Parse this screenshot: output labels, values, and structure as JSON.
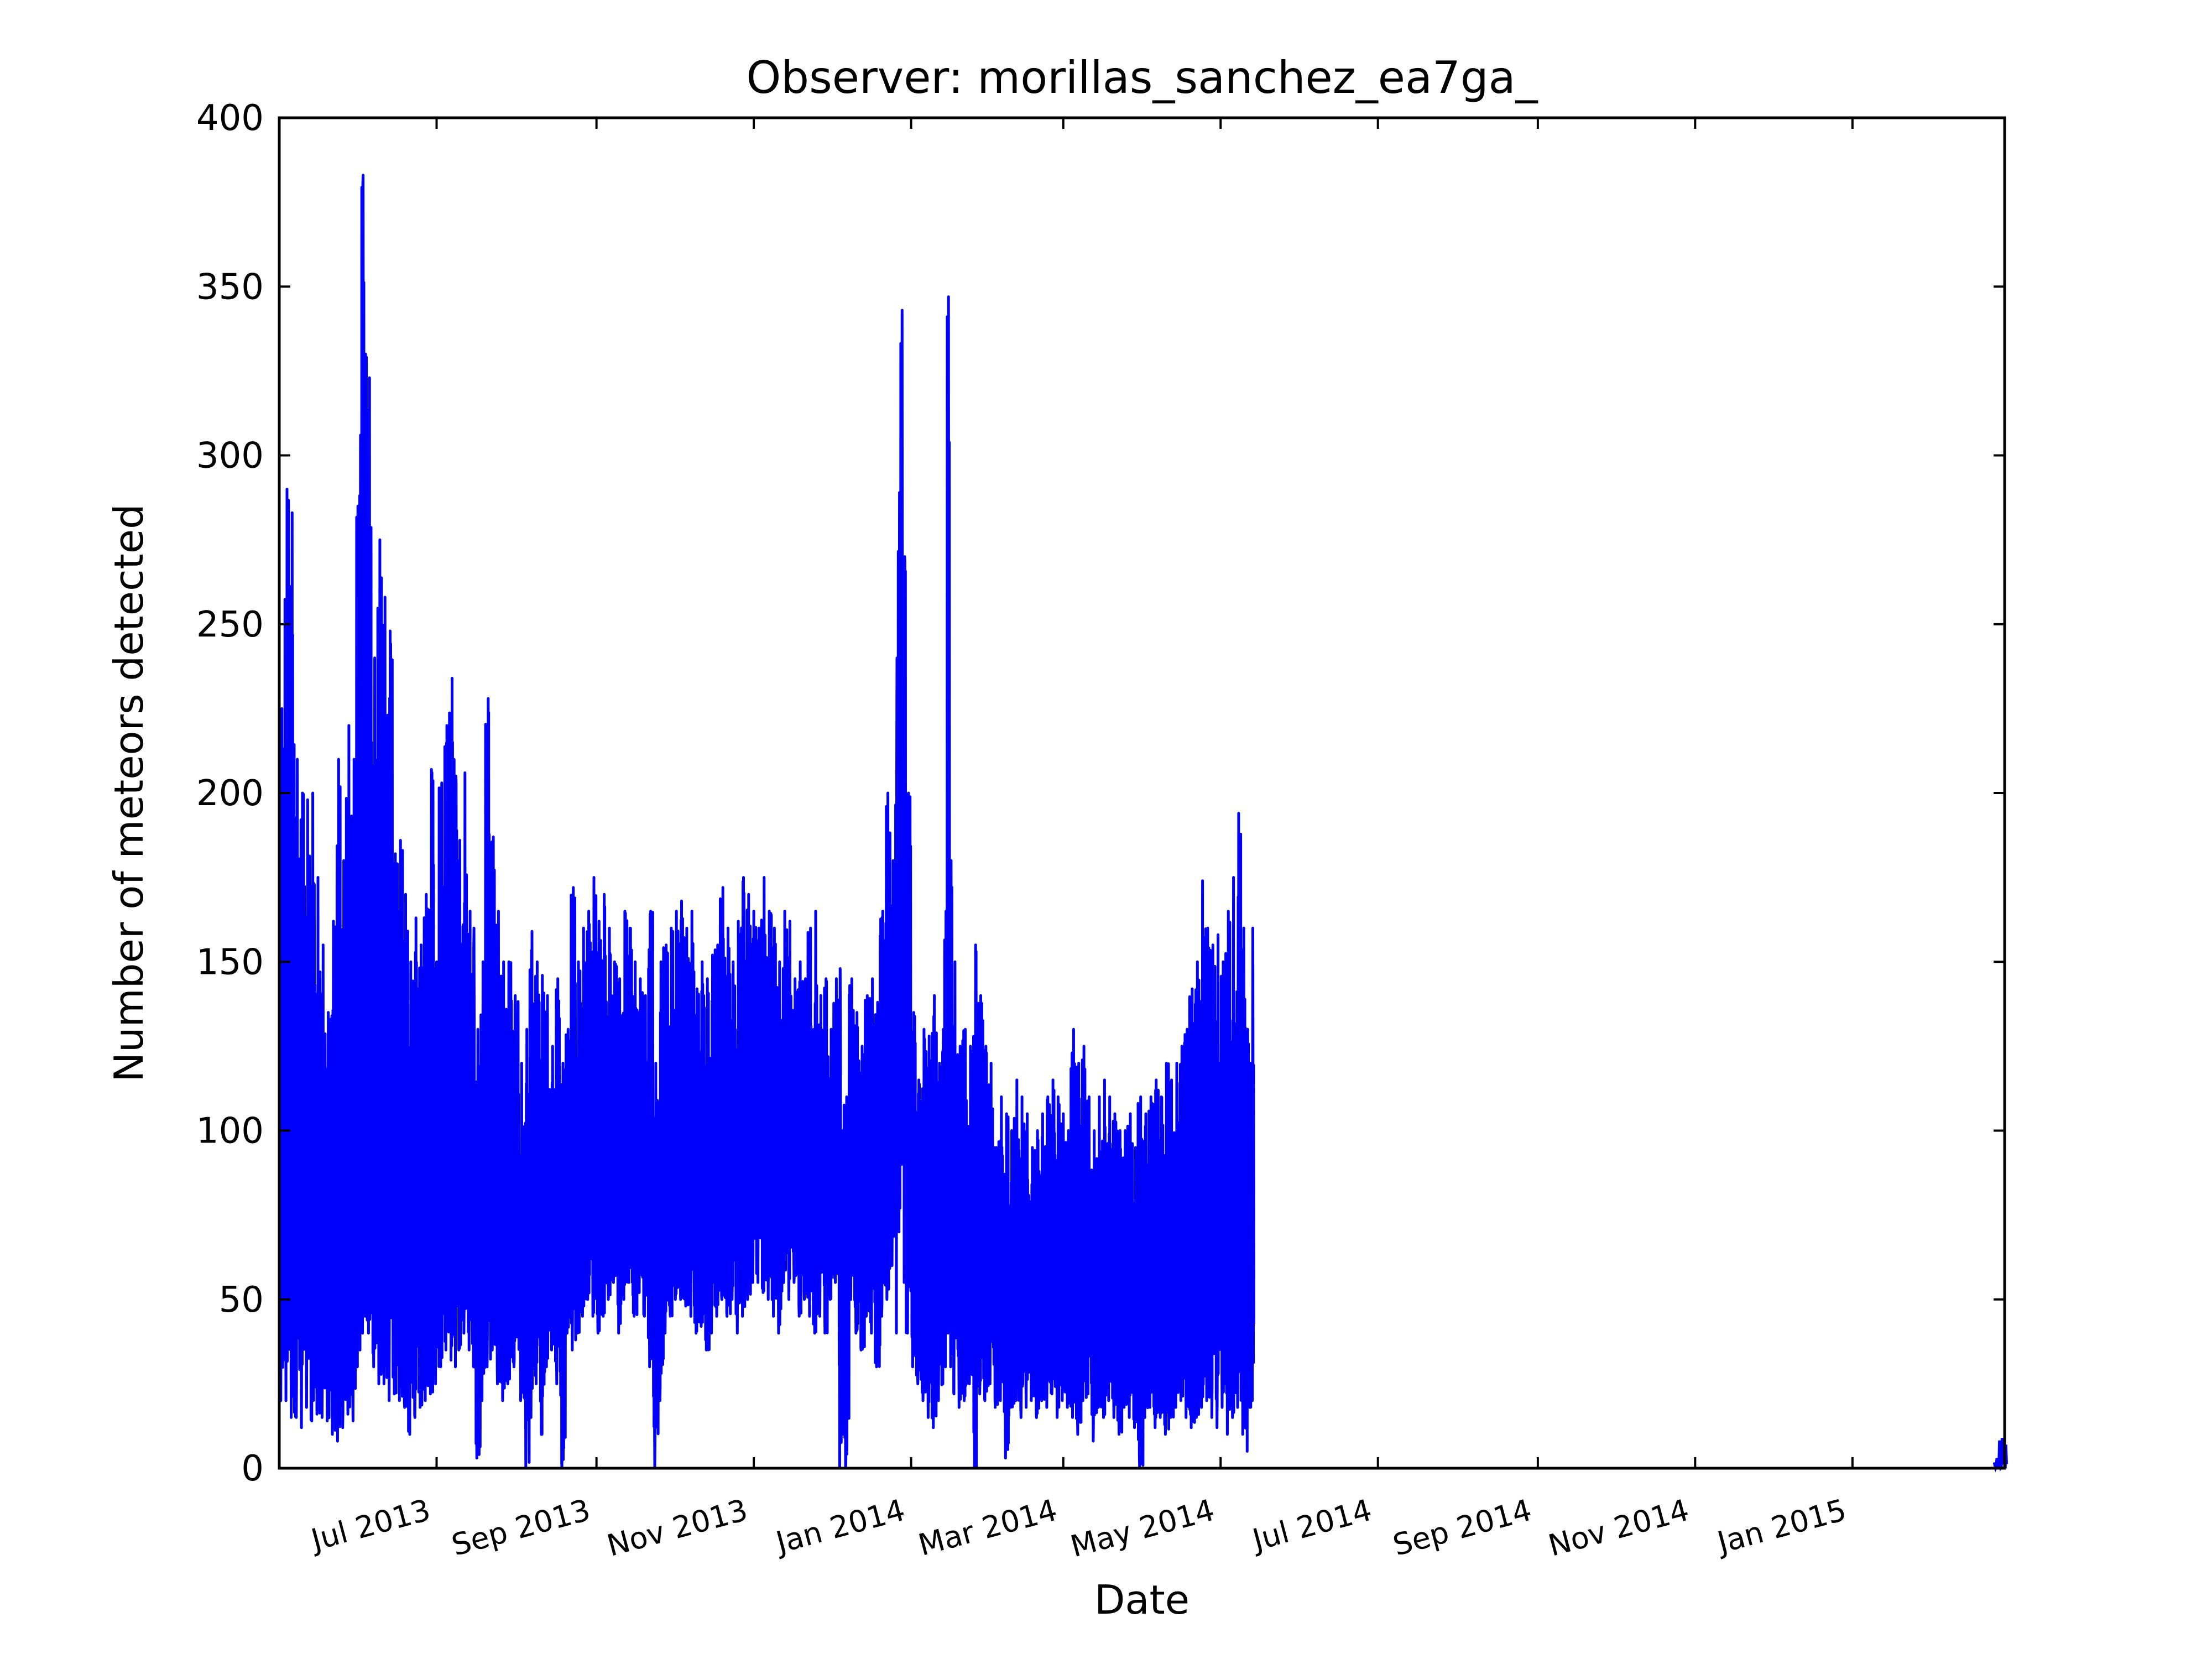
{
  "chart_data": {
    "type": "line",
    "title": "Observer: morillas_sanchez_ea7ga_",
    "xlabel": "Date",
    "ylabel": "Number of meteors detected",
    "xlim": [
      "2013-05-01",
      "2015-03-01"
    ],
    "ylim": [
      0,
      400
    ],
    "yticks": [
      0,
      50,
      100,
      150,
      200,
      250,
      300,
      350,
      400
    ],
    "xticks": [
      {
        "date": "2013-07-01",
        "label": "Jul 2013"
      },
      {
        "date": "2013-09-01",
        "label": "Sep 2013"
      },
      {
        "date": "2013-11-01",
        "label": "Nov 2013"
      },
      {
        "date": "2014-01-01",
        "label": "Jan 2014"
      },
      {
        "date": "2014-03-01",
        "label": "Mar 2014"
      },
      {
        "date": "2014-05-01",
        "label": "May 2014"
      },
      {
        "date": "2014-07-01",
        "label": "Jul 2014"
      },
      {
        "date": "2014-09-01",
        "label": "Sep 2014"
      },
      {
        "date": "2014-11-01",
        "label": "Nov 2014"
      },
      {
        "date": "2015-01-01",
        "label": "Jan 2015"
      }
    ],
    "grid": false,
    "legend": "none",
    "series": [
      {
        "color": "#0000ff",
        "daily_ranges": [
          [
            "2013-05-01",
            20,
            225
          ],
          [
            "2013-05-03",
            20,
            290
          ],
          [
            "2013-05-05",
            15,
            283
          ],
          [
            "2013-05-07",
            15,
            210
          ],
          [
            "2013-05-09",
            12,
            200
          ],
          [
            "2013-05-11",
            18,
            198
          ],
          [
            "2013-05-13",
            14,
            200
          ],
          [
            "2013-05-15",
            16,
            175
          ],
          [
            "2013-05-17",
            15,
            155
          ],
          [
            "2013-05-19",
            14,
            135
          ],
          [
            "2013-05-21",
            10,
            162
          ],
          [
            "2013-05-23",
            8,
            210
          ],
          [
            "2013-05-25",
            12,
            180
          ],
          [
            "2013-05-27",
            16,
            220
          ],
          [
            "2013-05-29",
            14,
            210
          ],
          [
            "2013-05-31",
            30,
            285
          ],
          [
            "2013-06-01",
            35,
            306
          ],
          [
            "2013-06-02",
            40,
            383
          ],
          [
            "2013-06-03",
            45,
            330
          ],
          [
            "2013-06-04",
            40,
            323
          ],
          [
            "2013-06-06",
            30,
            240
          ],
          [
            "2013-06-08",
            25,
            275
          ],
          [
            "2013-06-10",
            25,
            258
          ],
          [
            "2013-06-12",
            20,
            248
          ],
          [
            "2013-06-14",
            22,
            182
          ],
          [
            "2013-06-16",
            20,
            186
          ],
          [
            "2013-06-18",
            18,
            170
          ],
          [
            "2013-06-20",
            10,
            150
          ],
          [
            "2013-06-22",
            15,
            163
          ],
          [
            "2013-06-24",
            18,
            155
          ],
          [
            "2013-06-26",
            20,
            170
          ],
          [
            "2013-06-28",
            22,
            207
          ],
          [
            "2013-06-30",
            25,
            150
          ],
          [
            "2013-07-02",
            30,
            203
          ],
          [
            "2013-07-04",
            35,
            220
          ],
          [
            "2013-07-06",
            32,
            234
          ],
          [
            "2013-07-08",
            30,
            205
          ],
          [
            "2013-07-09",
            35,
            186
          ],
          [
            "2013-07-11",
            40,
            206
          ],
          [
            "2013-07-13",
            35,
            165
          ],
          [
            "2013-07-15",
            30,
            160
          ],
          [
            "2013-07-16",
            3,
            130
          ],
          [
            "2013-07-18",
            20,
            150
          ],
          [
            "2013-07-20",
            30,
            228
          ],
          [
            "2013-07-22",
            35,
            187
          ],
          [
            "2013-07-24",
            25,
            165
          ],
          [
            "2013-07-26",
            20,
            150
          ],
          [
            "2013-07-28",
            25,
            150
          ],
          [
            "2013-07-30",
            30,
            140
          ],
          [
            "2013-08-02",
            20,
            120
          ],
          [
            "2013-08-04",
            0,
            130
          ],
          [
            "2013-08-06",
            15,
            159
          ],
          [
            "2013-08-08",
            25,
            150
          ],
          [
            "2013-08-10",
            10,
            146
          ],
          [
            "2013-08-12",
            30,
            140
          ],
          [
            "2013-08-14",
            35,
            125
          ],
          [
            "2013-08-16",
            25,
            145
          ],
          [
            "2013-08-18",
            0,
            120
          ],
          [
            "2013-08-20",
            40,
            130
          ],
          [
            "2013-08-22",
            35,
            172
          ],
          [
            "2013-08-24",
            40,
            150
          ],
          [
            "2013-08-26",
            45,
            160
          ],
          [
            "2013-08-28",
            50,
            165
          ],
          [
            "2013-08-30",
            45,
            175
          ],
          [
            "2013-09-01",
            40,
            162
          ],
          [
            "2013-09-03",
            45,
            170
          ],
          [
            "2013-09-05",
            50,
            160
          ],
          [
            "2013-09-07",
            55,
            150
          ],
          [
            "2013-09-09",
            40,
            145
          ],
          [
            "2013-09-11",
            50,
            165
          ],
          [
            "2013-09-13",
            55,
            160
          ],
          [
            "2013-09-15",
            45,
            150
          ],
          [
            "2013-09-17",
            52,
            145
          ],
          [
            "2013-09-19",
            45,
            140
          ],
          [
            "2013-09-21",
            30,
            165
          ],
          [
            "2013-09-23",
            0,
            120
          ],
          [
            "2013-09-25",
            20,
            150
          ],
          [
            "2013-09-27",
            40,
            155
          ],
          [
            "2013-09-29",
            45,
            160
          ],
          [
            "2013-10-01",
            50,
            165
          ],
          [
            "2013-10-03",
            50,
            168
          ],
          [
            "2013-10-05",
            48,
            160
          ],
          [
            "2013-10-07",
            45,
            165
          ],
          [
            "2013-10-09",
            40,
            142
          ],
          [
            "2013-10-11",
            42,
            150
          ],
          [
            "2013-10-13",
            35,
            145
          ],
          [
            "2013-10-15",
            40,
            152
          ],
          [
            "2013-10-17",
            45,
            155
          ],
          [
            "2013-10-19",
            50,
            172
          ],
          [
            "2013-10-21",
            45,
            160
          ],
          [
            "2013-10-23",
            50,
            150
          ],
          [
            "2013-10-25",
            40,
            162
          ],
          [
            "2013-10-27",
            45,
            175
          ],
          [
            "2013-10-29",
            50,
            170
          ],
          [
            "2013-10-31",
            55,
            165
          ],
          [
            "2013-11-02",
            55,
            160
          ],
          [
            "2013-11-04",
            52,
            175
          ],
          [
            "2013-11-06",
            50,
            165
          ],
          [
            "2013-11-08",
            45,
            160
          ],
          [
            "2013-11-10",
            40,
            150
          ],
          [
            "2013-11-12",
            55,
            165
          ],
          [
            "2013-11-14",
            50,
            162
          ],
          [
            "2013-11-16",
            55,
            145
          ],
          [
            "2013-11-18",
            45,
            150
          ],
          [
            "2013-11-20",
            50,
            145
          ],
          [
            "2013-11-22",
            45,
            160
          ],
          [
            "2013-11-24",
            40,
            165
          ],
          [
            "2013-11-26",
            45,
            140
          ],
          [
            "2013-11-28",
            40,
            145
          ],
          [
            "2013-11-30",
            50,
            130
          ],
          [
            "2013-12-02",
            55,
            145
          ],
          [
            "2013-12-04",
            0,
            148
          ],
          [
            "2013-12-05",
            10,
            100
          ],
          [
            "2013-12-06",
            0,
            110
          ],
          [
            "2013-12-08",
            50,
            145
          ],
          [
            "2013-12-10",
            40,
            135
          ],
          [
            "2013-12-12",
            35,
            125
          ],
          [
            "2013-12-14",
            45,
            140
          ],
          [
            "2013-12-16",
            40,
            145
          ],
          [
            "2013-12-18",
            30,
            138
          ],
          [
            "2013-12-20",
            45,
            165
          ],
          [
            "2013-12-22",
            50,
            200
          ],
          [
            "2013-12-24",
            60,
            180
          ],
          [
            "2013-12-26",
            40,
            240
          ],
          [
            "2013-12-27",
            70,
            289
          ],
          [
            "2013-12-28",
            90,
            343
          ],
          [
            "2013-12-29",
            55,
            270
          ],
          [
            "2013-12-30",
            40,
            200
          ],
          [
            "2014-01-01",
            30,
            135
          ],
          [
            "2014-01-03",
            25,
            115
          ],
          [
            "2014-01-05",
            20,
            130
          ],
          [
            "2014-01-07",
            15,
            128
          ],
          [
            "2014-01-09",
            12,
            140
          ],
          [
            "2014-01-11",
            20,
            120
          ],
          [
            "2014-01-13",
            25,
            130
          ],
          [
            "2014-01-14",
            30,
            165
          ],
          [
            "2014-01-15",
            40,
            347
          ],
          [
            "2014-01-16",
            30,
            180
          ],
          [
            "2014-01-17",
            22,
            150
          ],
          [
            "2014-01-19",
            18,
            125
          ],
          [
            "2014-01-21",
            20,
            130
          ],
          [
            "2014-01-23",
            25,
            125
          ],
          [
            "2014-01-25",
            0,
            155
          ],
          [
            "2014-01-27",
            22,
            140
          ],
          [
            "2014-01-29",
            20,
            125
          ],
          [
            "2014-01-31",
            25,
            120
          ],
          [
            "2014-02-02",
            18,
            95
          ],
          [
            "2014-02-04",
            20,
            110
          ],
          [
            "2014-02-06",
            3,
            105
          ],
          [
            "2014-02-08",
            18,
            100
          ],
          [
            "2014-02-10",
            20,
            115
          ],
          [
            "2014-02-12",
            15,
            110
          ],
          [
            "2014-02-14",
            18,
            105
          ],
          [
            "2014-02-16",
            20,
            95
          ],
          [
            "2014-02-18",
            15,
            100
          ],
          [
            "2014-02-20",
            20,
            105
          ],
          [
            "2014-02-22",
            18,
            110
          ],
          [
            "2014-02-24",
            22,
            115
          ],
          [
            "2014-02-26",
            15,
            110
          ],
          [
            "2014-02-28",
            20,
            105
          ],
          [
            "2014-03-02",
            18,
            100
          ],
          [
            "2014-03-04",
            15,
            130
          ],
          [
            "2014-03-06",
            10,
            120
          ],
          [
            "2014-03-08",
            20,
            125
          ],
          [
            "2014-03-10",
            22,
            110
          ],
          [
            "2014-03-12",
            8,
            100
          ],
          [
            "2014-03-14",
            18,
            110
          ],
          [
            "2014-03-16",
            15,
            115
          ],
          [
            "2014-03-18",
            20,
            110
          ],
          [
            "2014-03-20",
            15,
            105
          ],
          [
            "2014-03-22",
            10,
            100
          ],
          [
            "2014-03-24",
            18,
            100
          ],
          [
            "2014-03-26",
            15,
            105
          ],
          [
            "2014-03-28",
            12,
            95
          ],
          [
            "2014-03-30",
            0,
            110
          ],
          [
            "2014-04-01",
            15,
            105
          ],
          [
            "2014-04-03",
            18,
            110
          ],
          [
            "2014-04-05",
            12,
            115
          ],
          [
            "2014-04-07",
            15,
            110
          ],
          [
            "2014-04-09",
            10,
            120
          ],
          [
            "2014-04-11",
            15,
            115
          ],
          [
            "2014-04-13",
            18,
            120
          ],
          [
            "2014-04-15",
            20,
            125
          ],
          [
            "2014-04-17",
            15,
            130
          ],
          [
            "2014-04-19",
            12,
            142
          ],
          [
            "2014-04-21",
            15,
            150
          ],
          [
            "2014-04-23",
            18,
            174
          ],
          [
            "2014-04-25",
            20,
            160
          ],
          [
            "2014-04-27",
            15,
            155
          ],
          [
            "2014-04-29",
            12,
            158
          ],
          [
            "2014-05-01",
            18,
            150
          ],
          [
            "2014-05-03",
            10,
            165
          ],
          [
            "2014-05-05",
            15,
            175
          ],
          [
            "2014-05-07",
            18,
            194
          ],
          [
            "2014-05-09",
            10,
            160
          ],
          [
            "2014-05-11",
            5,
            130
          ],
          [
            "2014-05-12",
            18,
            120
          ],
          [
            "2014-05-13",
            20,
            160
          ]
        ],
        "late_ranges": [
          [
            "2015-02-25",
            0,
            3
          ],
          [
            "2015-02-27",
            0,
            9
          ],
          [
            "2015-03-01",
            0,
            7
          ]
        ]
      }
    ]
  }
}
